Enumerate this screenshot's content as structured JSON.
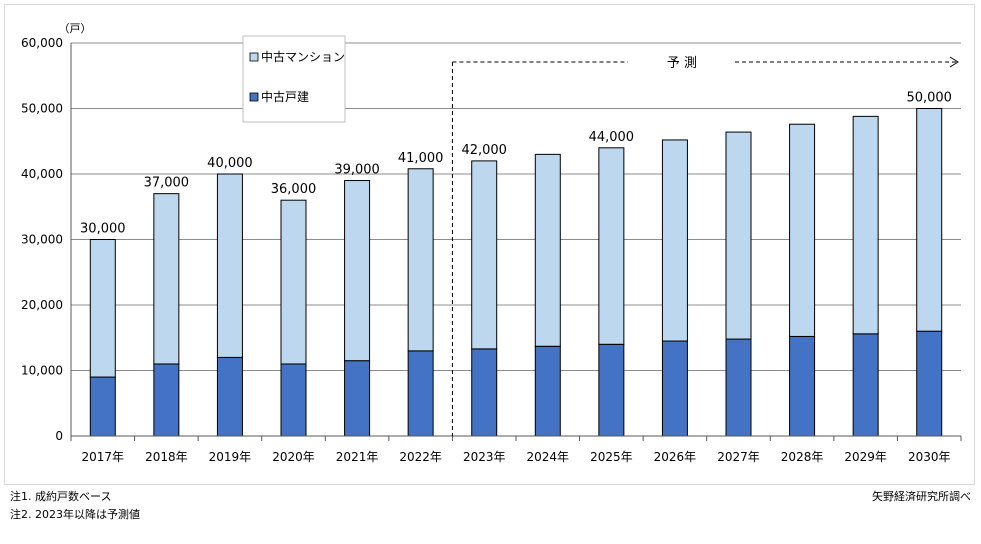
{
  "chart_data": {
    "type": "bar",
    "stacked": true,
    "unit_label": "（戸）",
    "categories": [
      "2017年",
      "2018年",
      "2019年",
      "2020年",
      "2021年",
      "2022年",
      "2023年",
      "2024年",
      "2025年",
      "2026年",
      "2027年",
      "2028年",
      "2029年",
      "2030年"
    ],
    "series": [
      {
        "name": "中古戸建",
        "color": "#4472c4",
        "values": [
          9000,
          11000,
          12000,
          11000,
          11500,
          13000,
          13300,
          13700,
          14000,
          14500,
          14800,
          15200,
          15600,
          16000
        ]
      },
      {
        "name": "中古マンション",
        "color": "#bdd7ee",
        "values": [
          21000,
          26000,
          28000,
          25000,
          27500,
          27800,
          28700,
          29300,
          30000,
          30700,
          31600,
          32400,
          33200,
          34000
        ]
      }
    ],
    "data_labels": [
      "30,000",
      "37,000",
      "40,000",
      "36,000",
      "39,000",
      "41,000",
      "42,000",
      "",
      "44,000",
      "",
      "",
      "",
      "",
      "50,000"
    ],
    "ylim": [
      0,
      60000
    ],
    "y_ticks": [
      "0",
      "10,000",
      "20,000",
      "30,000",
      "40,000",
      "50,000",
      "60,000"
    ],
    "grid": true,
    "legend_position": "top-left",
    "forecast_label": "予 測",
    "forecast_start_index": 6
  },
  "notes": {
    "note1": "注1.  成約戸数ベース",
    "note2": "注2.  2023年以降は予測値",
    "source": "矢野経済研究所調べ"
  }
}
